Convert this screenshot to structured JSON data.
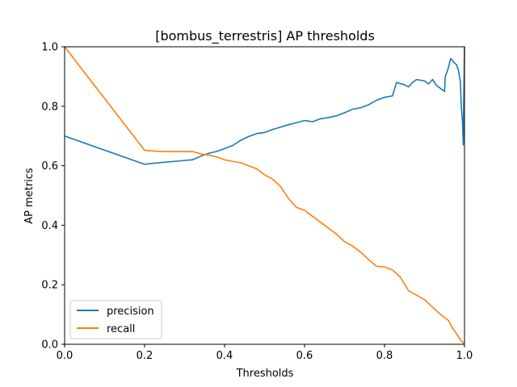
{
  "chart_data": {
    "type": "line",
    "title": "[bombus_terrestris] AP thresholds",
    "xlabel": "Thresholds",
    "ylabel": "AP metrics",
    "xlim": [
      0,
      1
    ],
    "ylim": [
      0,
      1
    ],
    "xticks": [
      "0.0",
      "0.2",
      "0.4",
      "0.6",
      "0.8",
      "1.0"
    ],
    "yticks": [
      "0.0",
      "0.2",
      "0.4",
      "0.6",
      "0.8",
      "1.0"
    ],
    "grid": false,
    "legend_position": "lower-left",
    "series": [
      {
        "name": "precision",
        "color": "#1f77b4",
        "points": [
          [
            0.0,
            0.7
          ],
          [
            0.2,
            0.605
          ],
          [
            0.22,
            0.608
          ],
          [
            0.3,
            0.618
          ],
          [
            0.32,
            0.62
          ],
          [
            0.34,
            0.632
          ],
          [
            0.36,
            0.642
          ],
          [
            0.38,
            0.648
          ],
          [
            0.4,
            0.658
          ],
          [
            0.42,
            0.668
          ],
          [
            0.44,
            0.685
          ],
          [
            0.46,
            0.698
          ],
          [
            0.48,
            0.708
          ],
          [
            0.5,
            0.712
          ],
          [
            0.52,
            0.722
          ],
          [
            0.54,
            0.73
          ],
          [
            0.56,
            0.738
          ],
          [
            0.58,
            0.745
          ],
          [
            0.6,
            0.752
          ],
          [
            0.62,
            0.748
          ],
          [
            0.64,
            0.758
          ],
          [
            0.66,
            0.762
          ],
          [
            0.68,
            0.768
          ],
          [
            0.7,
            0.778
          ],
          [
            0.72,
            0.79
          ],
          [
            0.74,
            0.795
          ],
          [
            0.76,
            0.805
          ],
          [
            0.78,
            0.82
          ],
          [
            0.8,
            0.83
          ],
          [
            0.82,
            0.835
          ],
          [
            0.83,
            0.88
          ],
          [
            0.85,
            0.872
          ],
          [
            0.86,
            0.865
          ],
          [
            0.87,
            0.88
          ],
          [
            0.88,
            0.89
          ],
          [
            0.9,
            0.885
          ],
          [
            0.91,
            0.875
          ],
          [
            0.92,
            0.89
          ],
          [
            0.93,
            0.87
          ],
          [
            0.94,
            0.86
          ],
          [
            0.95,
            0.85
          ],
          [
            0.952,
            0.9
          ],
          [
            0.96,
            0.93
          ],
          [
            0.965,
            0.96
          ],
          [
            0.97,
            0.955
          ],
          [
            0.975,
            0.945
          ],
          [
            0.98,
            0.94
          ],
          [
            0.985,
            0.92
          ],
          [
            0.99,
            0.88
          ],
          [
            0.992,
            0.8
          ],
          [
            0.995,
            0.75
          ],
          [
            0.997,
            0.67
          ],
          [
            0.998,
            0.8
          ],
          [
            0.999,
            0.9
          ],
          [
            1.0,
            1.0
          ]
        ]
      },
      {
        "name": "recall",
        "color": "#ff7f0e",
        "points": [
          [
            0.0,
            1.0
          ],
          [
            0.2,
            0.652
          ],
          [
            0.22,
            0.65
          ],
          [
            0.24,
            0.648
          ],
          [
            0.32,
            0.648
          ],
          [
            0.34,
            0.64
          ],
          [
            0.36,
            0.636
          ],
          [
            0.38,
            0.63
          ],
          [
            0.4,
            0.62
          ],
          [
            0.42,
            0.615
          ],
          [
            0.44,
            0.61
          ],
          [
            0.46,
            0.6
          ],
          [
            0.48,
            0.59
          ],
          [
            0.5,
            0.57
          ],
          [
            0.52,
            0.555
          ],
          [
            0.54,
            0.53
          ],
          [
            0.56,
            0.49
          ],
          [
            0.58,
            0.46
          ],
          [
            0.6,
            0.45
          ],
          [
            0.62,
            0.43
          ],
          [
            0.64,
            0.41
          ],
          [
            0.66,
            0.39
          ],
          [
            0.68,
            0.37
          ],
          [
            0.7,
            0.345
          ],
          [
            0.72,
            0.33
          ],
          [
            0.74,
            0.31
          ],
          [
            0.76,
            0.285
          ],
          [
            0.78,
            0.262
          ],
          [
            0.8,
            0.26
          ],
          [
            0.82,
            0.25
          ],
          [
            0.84,
            0.225
          ],
          [
            0.86,
            0.18
          ],
          [
            0.88,
            0.165
          ],
          [
            0.9,
            0.15
          ],
          [
            0.92,
            0.125
          ],
          [
            0.94,
            0.1
          ],
          [
            0.96,
            0.08
          ],
          [
            0.97,
            0.055
          ],
          [
            0.98,
            0.035
          ],
          [
            0.99,
            0.015
          ],
          [
            1.0,
            0.0
          ]
        ]
      }
    ]
  }
}
